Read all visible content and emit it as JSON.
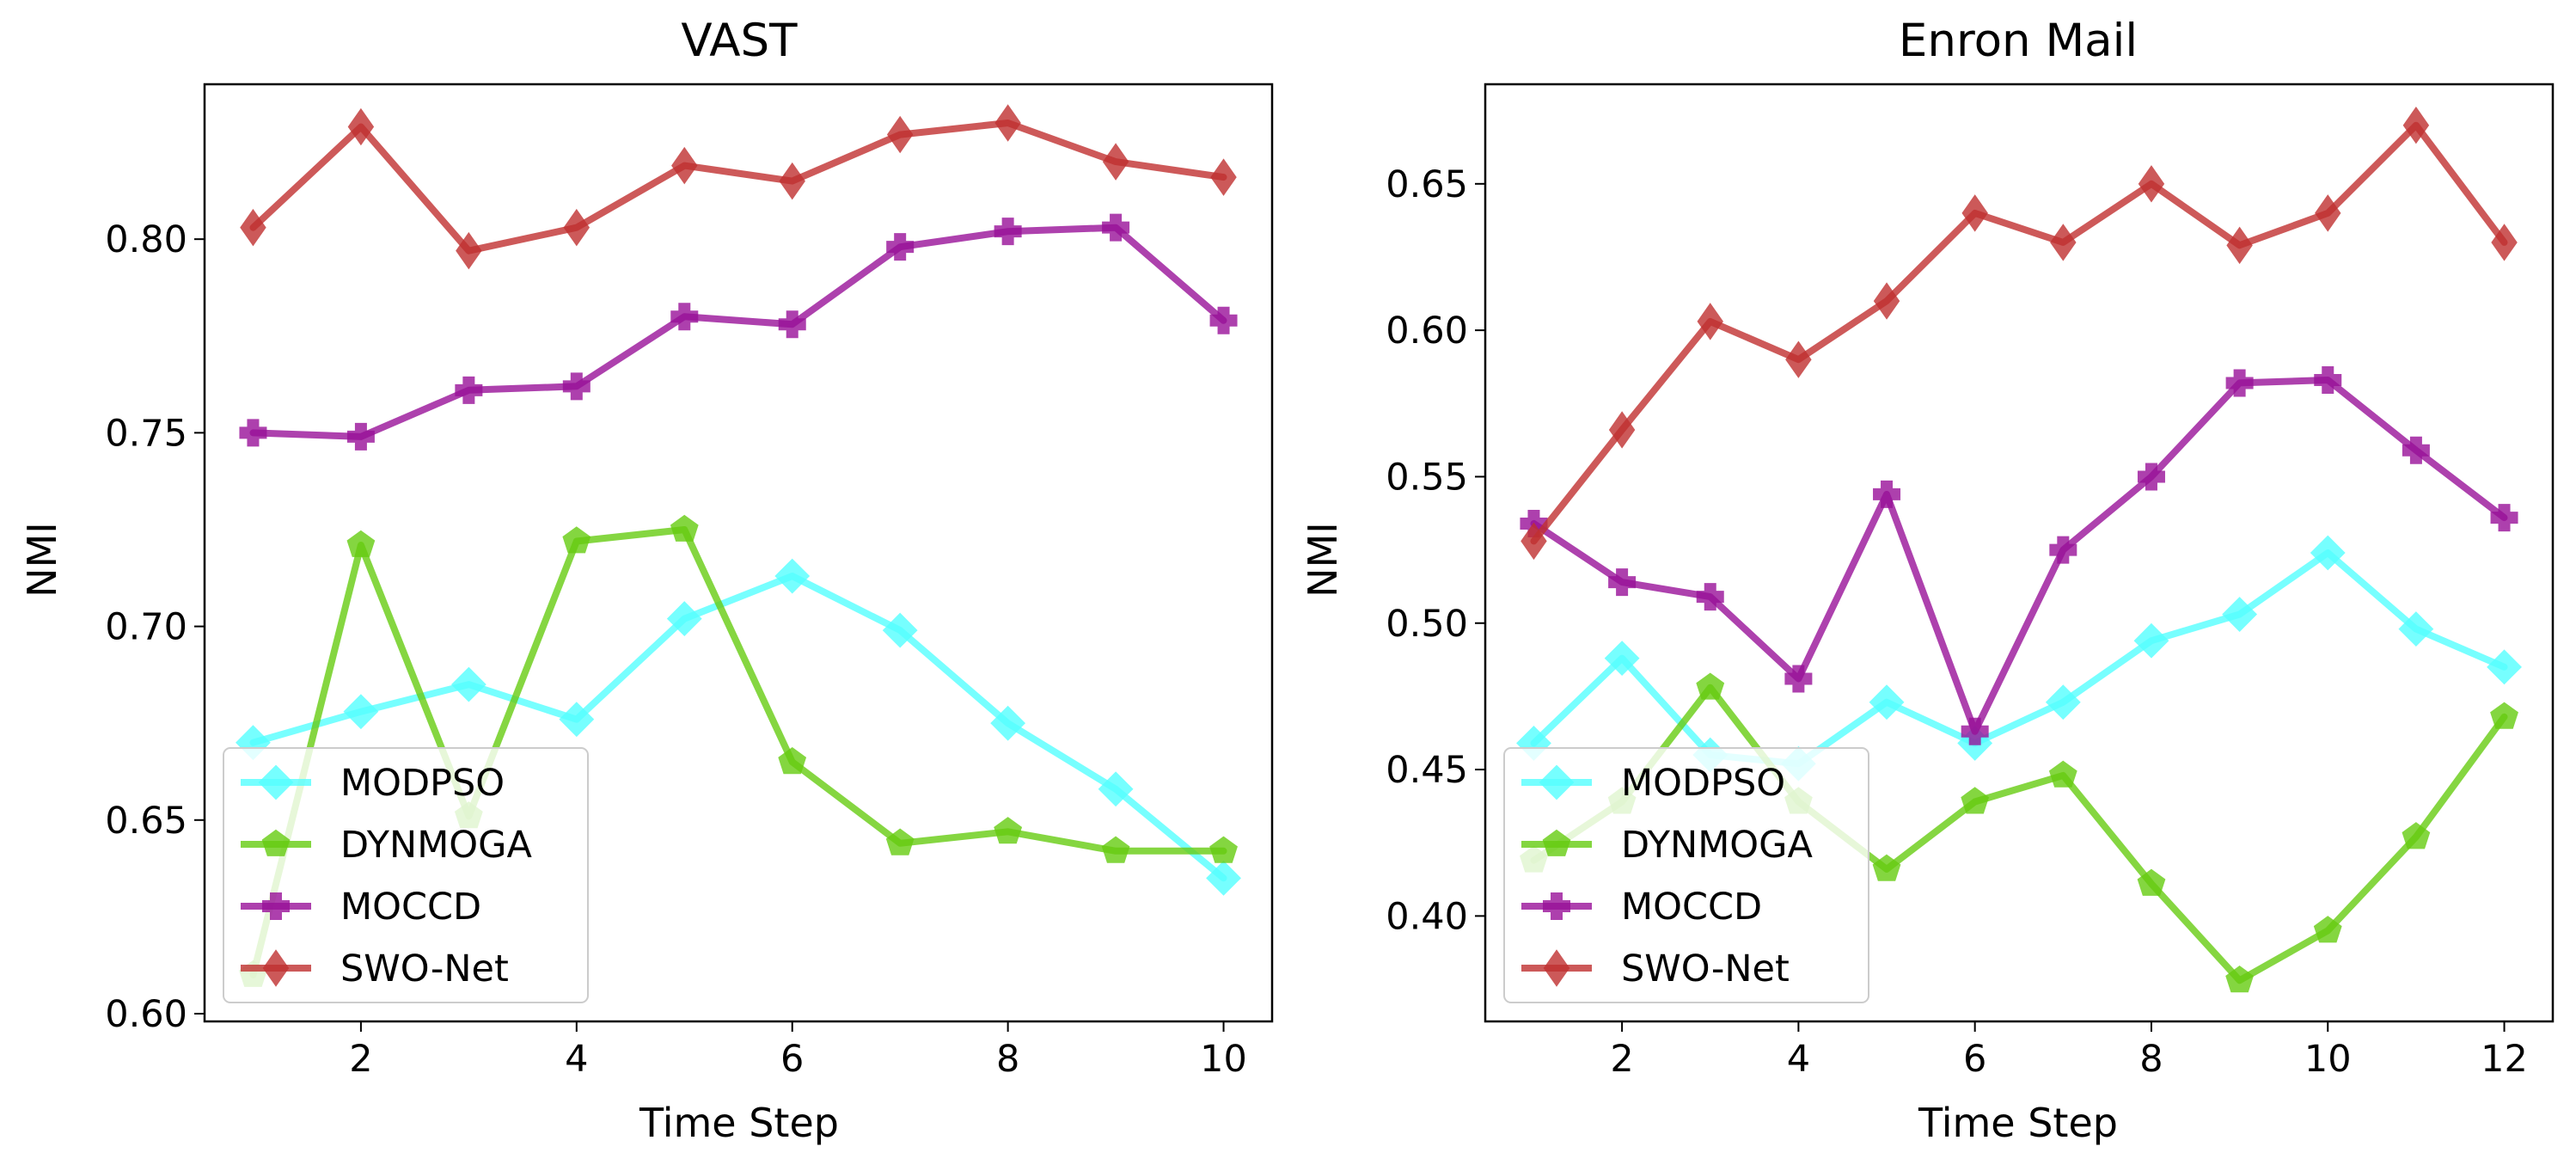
{
  "chart_data": [
    {
      "type": "line",
      "title": "VAST",
      "xlabel": "Time Step",
      "ylabel": "NMI",
      "xlim": [
        0.55,
        10.45
      ],
      "ylim": [
        0.598,
        0.84
      ],
      "xticks": [
        2,
        4,
        6,
        8,
        10
      ],
      "yticks": [
        0.6,
        0.65,
        0.7,
        0.75,
        0.8
      ],
      "legend_position": "lower-left",
      "x": [
        1,
        2,
        3,
        4,
        5,
        6,
        7,
        8,
        9,
        10
      ],
      "series": [
        {
          "name": "MODPSO",
          "color": "#55ffff",
          "marker": "diamond",
          "values": [
            0.67,
            0.678,
            0.685,
            0.676,
            0.702,
            0.713,
            0.699,
            0.675,
            0.658,
            0.635
          ]
        },
        {
          "name": "DYNMOGA",
          "color": "#66cc11",
          "marker": "pentagon",
          "values": [
            0.61,
            0.721,
            0.651,
            0.722,
            0.725,
            0.665,
            0.644,
            0.647,
            0.642,
            0.642
          ]
        },
        {
          "name": "MOCCD",
          "color": "#991199",
          "marker": "plus",
          "values": [
            0.75,
            0.749,
            0.761,
            0.762,
            0.78,
            0.778,
            0.798,
            0.802,
            0.803,
            0.779
          ]
        },
        {
          "name": "SWO-Net",
          "color": "#c03030",
          "marker": "thin_diamond",
          "values": [
            0.803,
            0.829,
            0.797,
            0.803,
            0.819,
            0.815,
            0.827,
            0.83,
            0.82,
            0.816
          ]
        }
      ]
    },
    {
      "type": "line",
      "title": "Enron Mail",
      "xlabel": "Time Step",
      "ylabel": "NMI",
      "xlim": [
        0.45,
        12.55
      ],
      "ylim": [
        0.364,
        0.684
      ],
      "xticks": [
        2,
        4,
        6,
        8,
        10,
        12
      ],
      "yticks": [
        0.4,
        0.45,
        0.5,
        0.55,
        0.6,
        0.65
      ],
      "legend_position": "lower-left",
      "x": [
        1,
        2,
        3,
        4,
        5,
        6,
        7,
        8,
        9,
        10,
        11,
        12
      ],
      "series": [
        {
          "name": "MODPSO",
          "color": "#55ffff",
          "marker": "diamond",
          "values": [
            0.459,
            0.488,
            0.455,
            0.452,
            0.473,
            0.459,
            0.473,
            0.494,
            0.503,
            0.524,
            0.498,
            0.485
          ]
        },
        {
          "name": "DYNMOGA",
          "color": "#66cc11",
          "marker": "pentagon",
          "values": [
            0.419,
            0.439,
            0.478,
            0.439,
            0.416,
            0.439,
            0.448,
            0.411,
            0.378,
            0.395,
            0.427,
            0.468
          ]
        },
        {
          "name": "MOCCD",
          "color": "#991199",
          "marker": "plus",
          "values": [
            0.534,
            0.514,
            0.509,
            0.481,
            0.544,
            0.463,
            0.525,
            0.55,
            0.582,
            0.583,
            0.559,
            0.536
          ]
        },
        {
          "name": "SWO-Net",
          "color": "#c03030",
          "marker": "thin_diamond",
          "values": [
            0.528,
            0.566,
            0.603,
            0.59,
            0.61,
            0.64,
            0.63,
            0.65,
            0.629,
            0.64,
            0.67,
            0.63
          ]
        }
      ]
    }
  ]
}
